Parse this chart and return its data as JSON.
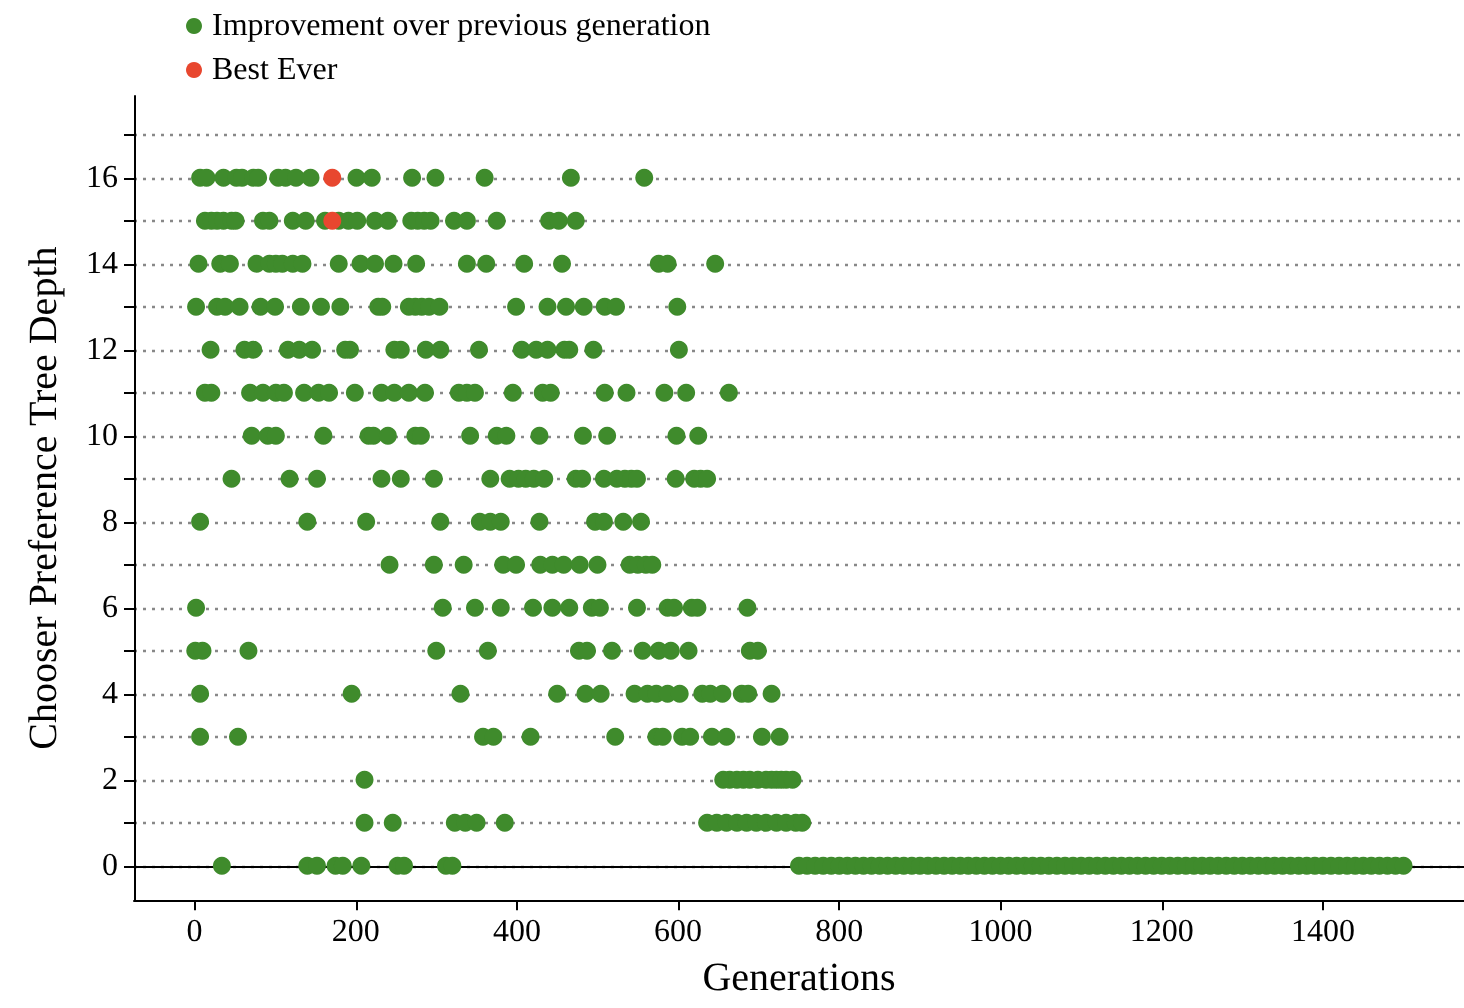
{
  "chart_data": {
    "type": "scatter",
    "xlabel": "Generations",
    "ylabel": "Chooser Preference Tree Depth",
    "xlim": [
      -75,
      1575
    ],
    "xticks": [
      0,
      200,
      400,
      600,
      800,
      1000,
      1200,
      1400
    ],
    "ylim": [
      -0.8,
      17.9
    ],
    "yticks": [
      0,
      {
        "value": 1,
        "label": null
      },
      2,
      {
        "value": 3,
        "label": null
      },
      4,
      {
        "value": 5,
        "label": null
      },
      6,
      {
        "value": 7,
        "label": null
      },
      8,
      {
        "value": 9,
        "label": null
      },
      10,
      {
        "value": 11,
        "label": null
      },
      12,
      {
        "value": 13,
        "label": null
      },
      14,
      {
        "value": 15,
        "label": null
      },
      16,
      {
        "value": 17,
        "label": null
      }
    ],
    "grid": "y",
    "legend": "top left",
    "marker": "circle",
    "series": [
      {
        "name": "Improvement over previous generation",
        "color": "#3f8b2c",
        "x": [
          7,
          15,
          36,
          52,
          59,
          73,
          79,
          104,
          113,
          126,
          144,
          201,
          220,
          270,
          299,
          360,
          467,
          558,
          13,
          21,
          28,
          36,
          46,
          51,
          85,
          93,
          122,
          138,
          162,
          179,
          191,
          202,
          224,
          240,
          269,
          277,
          285,
          293,
          322,
          338,
          375,
          440,
          452,
          473,
          5,
          32,
          44,
          77,
          93,
          101,
          109,
          122,
          134,
          179,
          206,
          224,
          247,
          275,
          338,
          362,
          409,
          456,
          576,
          587,
          646,
          2,
          28,
          38,
          56,
          82,
          100,
          132,
          157,
          181,
          228,
          233,
          266,
          274,
          282,
          291,
          304,
          399,
          438,
          461,
          483,
          509,
          523,
          599,
          20,
          62,
          73,
          116,
          130,
          146,
          187,
          193,
          248,
          256,
          287,
          305,
          353,
          406,
          424,
          438,
          459,
          465,
          495,
          601,
          13,
          21,
          69,
          85,
          101,
          111,
          136,
          154,
          167,
          199,
          232,
          248,
          266,
          286,
          328,
          338,
          348,
          395,
          432,
          442,
          509,
          536,
          583,
          610,
          663,
          71,
          91,
          101,
          160,
          216,
          222,
          240,
          274,
          281,
          342,
          375,
          387,
          428,
          482,
          512,
          598,
          625,
          46,
          118,
          152,
          232,
          256,
          297,
          367,
          391,
          402,
          411,
          421,
          434,
          473,
          481,
          508,
          524,
          534,
          542,
          549,
          597,
          620,
          628,
          636,
          7,
          140,
          213,
          305,
          354,
          367,
          380,
          428,
          497,
          508,
          532,
          554,
          242,
          297,
          334,
          383,
          399,
          429,
          444,
          458,
          478,
          500,
          540,
          550,
          560,
          568,
          2,
          308,
          348,
          380,
          420,
          444,
          465,
          493,
          503,
          549,
          587,
          595,
          617,
          624,
          686,
          1,
          10,
          67,
          300,
          364,
          477,
          487,
          518,
          556,
          576,
          591,
          613,
          689,
          699,
          7,
          195,
          330,
          450,
          485,
          504,
          546,
          562,
          573,
          587,
          602,
          630,
          640,
          655,
          679,
          687,
          716,
          7,
          54,
          358,
          371,
          417,
          522,
          573,
          581,
          605,
          615,
          642,
          660,
          704,
          726,
          211,
          656,
          664,
          673,
          681,
          689,
          699,
          709,
          716,
          722,
          728,
          734,
          742,
          211,
          246,
          323,
          336,
          350,
          385,
          636,
          648,
          660,
          673,
          685,
          697,
          709,
          722,
          734,
          746,
          754,
          34,
          140,
          152,
          175,
          184,
          207,
          252,
          260,
          312,
          320,
          750,
          760,
          770,
          780,
          790,
          800,
          810,
          820,
          830,
          840,
          850,
          860,
          870,
          880,
          890,
          900,
          910,
          920,
          930,
          940,
          950,
          960,
          970,
          980,
          990,
          1000,
          1010,
          1020,
          1030,
          1040,
          1050,
          1060,
          1070,
          1080,
          1090,
          1100,
          1110,
          1120,
          1130,
          1140,
          1150,
          1160,
          1170,
          1180,
          1190,
          1200,
          1210,
          1220,
          1230,
          1240,
          1250,
          1260,
          1270,
          1280,
          1290,
          1300,
          1310,
          1320,
          1330,
          1340,
          1350,
          1360,
          1370,
          1380,
          1390,
          1400,
          1410,
          1420,
          1430,
          1440,
          1450,
          1460,
          1470,
          1480,
          1490,
          1500
        ],
        "values": [
          16,
          16,
          16,
          16,
          16,
          16,
          16,
          16,
          16,
          16,
          16,
          16,
          16,
          16,
          16,
          16,
          16,
          16,
          15,
          15,
          15,
          15,
          15,
          15,
          15,
          15,
          15,
          15,
          15,
          15,
          15,
          15,
          15,
          15,
          15,
          15,
          15,
          15,
          15,
          15,
          15,
          15,
          15,
          15,
          14,
          14,
          14,
          14,
          14,
          14,
          14,
          14,
          14,
          14,
          14,
          14,
          14,
          14,
          14,
          14,
          14,
          14,
          14,
          14,
          14,
          13,
          13,
          13,
          13,
          13,
          13,
          13,
          13,
          13,
          13,
          13,
          13,
          13,
          13,
          13,
          13,
          13,
          13,
          13,
          13,
          13,
          13,
          13,
          12,
          12,
          12,
          12,
          12,
          12,
          12,
          12,
          12,
          12,
          12,
          12,
          12,
          12,
          12,
          12,
          12,
          12,
          12,
          12,
          11,
          11,
          11,
          11,
          11,
          11,
          11,
          11,
          11,
          11,
          11,
          11,
          11,
          11,
          11,
          11,
          11,
          11,
          11,
          11,
          11,
          11,
          11,
          11,
          11,
          10,
          10,
          10,
          10,
          10,
          10,
          10,
          10,
          10,
          10,
          10,
          10,
          10,
          10,
          10,
          10,
          10,
          9,
          9,
          9,
          9,
          9,
          9,
          9,
          9,
          9,
          9,
          9,
          9,
          9,
          9,
          9,
          9,
          9,
          9,
          9,
          9,
          9,
          9,
          9,
          8,
          8,
          8,
          8,
          8,
          8,
          8,
          8,
          8,
          8,
          8,
          8,
          7,
          7,
          7,
          7,
          7,
          7,
          7,
          7,
          7,
          7,
          7,
          7,
          7,
          7,
          6,
          6,
          6,
          6,
          6,
          6,
          6,
          6,
          6,
          6,
          6,
          6,
          6,
          6,
          6,
          5,
          5,
          5,
          5,
          5,
          5,
          5,
          5,
          5,
          5,
          5,
          5,
          5,
          5,
          4,
          4,
          4,
          4,
          4,
          4,
          4,
          4,
          4,
          4,
          4,
          4,
          4,
          4,
          4,
          4,
          4,
          3,
          3,
          3,
          3,
          3,
          3,
          3,
          3,
          3,
          3,
          3,
          3,
          3,
          3,
          2,
          2,
          2,
          2,
          2,
          2,
          2,
          2,
          2,
          2,
          2,
          2,
          2,
          1,
          1,
          1,
          1,
          1,
          1,
          1,
          1,
          1,
          1,
          1,
          1,
          1,
          1,
          1,
          1,
          1,
          0,
          0,
          0,
          0,
          0,
          0,
          0,
          0,
          0,
          0,
          0,
          0,
          0,
          0,
          0,
          0,
          0,
          0,
          0,
          0,
          0,
          0,
          0,
          0,
          0,
          0,
          0,
          0,
          0,
          0,
          0,
          0,
          0,
          0,
          0,
          0,
          0,
          0,
          0,
          0,
          0,
          0,
          0,
          0,
          0,
          0,
          0,
          0,
          0,
          0,
          0,
          0,
          0,
          0,
          0,
          0,
          0,
          0,
          0,
          0,
          0,
          0,
          0,
          0,
          0,
          0,
          0,
          0,
          0,
          0,
          0,
          0,
          0,
          0,
          0,
          0,
          0,
          0,
          0,
          0,
          0,
          0,
          0,
          0,
          0,
          0
        ]
      },
      {
        "name": "Best Ever",
        "color": "#e8472f",
        "x": [
          171,
          171
        ],
        "values": [
          16,
          15
        ]
      }
    ]
  }
}
